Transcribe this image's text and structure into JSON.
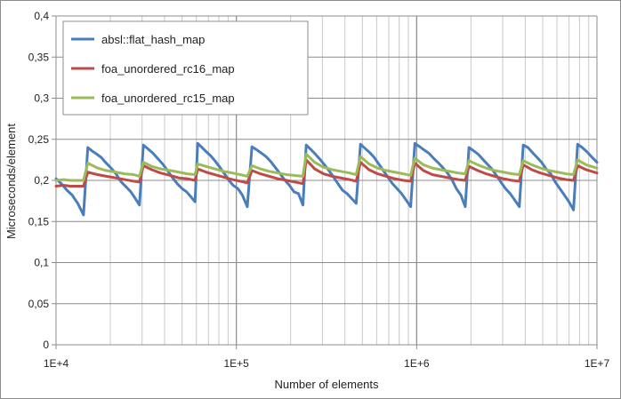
{
  "chart_data": {
    "type": "line",
    "title": "",
    "xlabel": "Number of elements",
    "ylabel": "Microseconds/element",
    "x_scale": "log",
    "xlim": [
      10000,
      10000000
    ],
    "ylim": [
      0,
      0.4
    ],
    "x_ticks": [
      {
        "value": 10000,
        "label": "1E+4"
      },
      {
        "value": 100000,
        "label": "1E+5"
      },
      {
        "value": 1000000,
        "label": "1E+6"
      },
      {
        "value": 10000000,
        "label": "1E+7"
      }
    ],
    "y_ticks": [
      {
        "value": 0,
        "label": "0"
      },
      {
        "value": 0.05,
        "label": "0,05"
      },
      {
        "value": 0.1,
        "label": "0,1"
      },
      {
        "value": 0.15,
        "label": "0,15"
      },
      {
        "value": 0.2,
        "label": "0,2"
      },
      {
        "value": 0.25,
        "label": "0,25"
      },
      {
        "value": 0.3,
        "label": "0,3"
      },
      {
        "value": 0.35,
        "label": "0,35"
      },
      {
        "value": 0.4,
        "label": "0,4"
      }
    ],
    "grid": true,
    "legend_position": "top-left",
    "series": [
      {
        "name": "absl::flat_hash_map",
        "color": "#4a7ebb",
        "points": [
          [
            10000,
            0.202
          ],
          [
            10700,
            0.196
          ],
          [
            11500,
            0.188
          ],
          [
            12300,
            0.182
          ],
          [
            13200,
            0.172
          ],
          [
            14200,
            0.158
          ],
          [
            15000,
            0.24
          ],
          [
            15800,
            0.236
          ],
          [
            16800,
            0.232
          ],
          [
            17800,
            0.228
          ],
          [
            18800,
            0.222
          ],
          [
            20000,
            0.216
          ],
          [
            21500,
            0.208
          ],
          [
            23000,
            0.198
          ],
          [
            24500,
            0.192
          ],
          [
            26000,
            0.186
          ],
          [
            27500,
            0.178
          ],
          [
            29000,
            0.17
          ],
          [
            30500,
            0.243
          ],
          [
            32500,
            0.238
          ],
          [
            34500,
            0.233
          ],
          [
            36500,
            0.227
          ],
          [
            39000,
            0.22
          ],
          [
            41500,
            0.212
          ],
          [
            44000,
            0.204
          ],
          [
            47000,
            0.196
          ],
          [
            50000,
            0.19
          ],
          [
            53000,
            0.186
          ],
          [
            56000,
            0.18
          ],
          [
            59000,
            0.174
          ],
          [
            61000,
            0.245
          ],
          [
            64500,
            0.24
          ],
          [
            68000,
            0.235
          ],
          [
            72000,
            0.23
          ],
          [
            76000,
            0.224
          ],
          [
            81000,
            0.216
          ],
          [
            86000,
            0.208
          ],
          [
            91000,
            0.2
          ],
          [
            96000,
            0.194
          ],
          [
            102000,
            0.19
          ],
          [
            108000,
            0.182
          ],
          [
            115000,
            0.168
          ],
          [
            122000,
            0.241
          ],
          [
            130000,
            0.237
          ],
          [
            138000,
            0.233
          ],
          [
            146000,
            0.229
          ],
          [
            155000,
            0.223
          ],
          [
            164000,
            0.216
          ],
          [
            175000,
            0.208
          ],
          [
            186000,
            0.2
          ],
          [
            197000,
            0.194
          ],
          [
            209000,
            0.186
          ],
          [
            221000,
            0.184
          ],
          [
            234000,
            0.17
          ],
          [
            244000,
            0.243
          ],
          [
            258000,
            0.238
          ],
          [
            274000,
            0.232
          ],
          [
            290000,
            0.226
          ],
          [
            308000,
            0.219
          ],
          [
            326000,
            0.212
          ],
          [
            346000,
            0.204
          ],
          [
            366000,
            0.196
          ],
          [
            388000,
            0.188
          ],
          [
            411000,
            0.184
          ],
          [
            436000,
            0.178
          ],
          [
            462000,
            0.172
          ],
          [
            488000,
            0.244
          ],
          [
            517000,
            0.239
          ],
          [
            548000,
            0.234
          ],
          [
            581000,
            0.228
          ],
          [
            616000,
            0.22
          ],
          [
            653000,
            0.212
          ],
          [
            692000,
            0.204
          ],
          [
            734000,
            0.196
          ],
          [
            778000,
            0.19
          ],
          [
            824000,
            0.184
          ],
          [
            874000,
            0.176
          ],
          [
            926000,
            0.168
          ],
          [
            977000,
            0.245
          ],
          [
            1040000,
            0.241
          ],
          [
            1100000,
            0.237
          ],
          [
            1170000,
            0.233
          ],
          [
            1240000,
            0.227
          ],
          [
            1310000,
            0.222
          ],
          [
            1390000,
            0.216
          ],
          [
            1470000,
            0.21
          ],
          [
            1560000,
            0.202
          ],
          [
            1660000,
            0.19
          ],
          [
            1760000,
            0.182
          ],
          [
            1860000,
            0.168
          ],
          [
            1950000,
            0.24
          ],
          [
            2070000,
            0.236
          ],
          [
            2190000,
            0.232
          ],
          [
            2320000,
            0.226
          ],
          [
            2460000,
            0.22
          ],
          [
            2610000,
            0.214
          ],
          [
            2770000,
            0.206
          ],
          [
            2930000,
            0.198
          ],
          [
            3110000,
            0.19
          ],
          [
            3300000,
            0.184
          ],
          [
            3500000,
            0.176
          ],
          [
            3710000,
            0.168
          ],
          [
            3900000,
            0.243
          ],
          [
            4140000,
            0.24
          ],
          [
            4380000,
            0.234
          ],
          [
            4650000,
            0.228
          ],
          [
            4930000,
            0.222
          ],
          [
            5220000,
            0.214
          ],
          [
            5540000,
            0.208
          ],
          [
            5870000,
            0.198
          ],
          [
            6220000,
            0.19
          ],
          [
            6600000,
            0.182
          ],
          [
            6990000,
            0.174
          ],
          [
            7410000,
            0.164
          ],
          [
            7810000,
            0.244
          ],
          [
            8280000,
            0.24
          ],
          [
            8780000,
            0.235
          ],
          [
            9310000,
            0.229
          ],
          [
            10000000,
            0.222
          ]
        ]
      },
      {
        "name": "foa_unordered_rc16_map",
        "color": "#be4b48",
        "points": [
          [
            10000,
            0.193
          ],
          [
            11000,
            0.194
          ],
          [
            12000,
            0.193
          ],
          [
            13000,
            0.193
          ],
          [
            14200,
            0.193
          ],
          [
            15000,
            0.21
          ],
          [
            17000,
            0.207
          ],
          [
            19000,
            0.205
          ],
          [
            21500,
            0.203
          ],
          [
            24000,
            0.201
          ],
          [
            27000,
            0.199
          ],
          [
            29000,
            0.198
          ],
          [
            30500,
            0.218
          ],
          [
            34000,
            0.213
          ],
          [
            38000,
            0.209
          ],
          [
            43000,
            0.206
          ],
          [
            48000,
            0.203
          ],
          [
            53500,
            0.202
          ],
          [
            59000,
            0.2
          ],
          [
            61000,
            0.214
          ],
          [
            68000,
            0.21
          ],
          [
            76000,
            0.207
          ],
          [
            85000,
            0.204
          ],
          [
            95000,
            0.201
          ],
          [
            105000,
            0.199
          ],
          [
            115000,
            0.197
          ],
          [
            122000,
            0.212
          ],
          [
            136000,
            0.208
          ],
          [
            152000,
            0.205
          ],
          [
            170000,
            0.202
          ],
          [
            190000,
            0.2
          ],
          [
            212000,
            0.198
          ],
          [
            234000,
            0.196
          ],
          [
            244000,
            0.225
          ],
          [
            272000,
            0.214
          ],
          [
            304000,
            0.208
          ],
          [
            340000,
            0.205
          ],
          [
            380000,
            0.203
          ],
          [
            424000,
            0.201
          ],
          [
            462000,
            0.199
          ],
          [
            488000,
            0.222
          ],
          [
            544000,
            0.213
          ],
          [
            608000,
            0.208
          ],
          [
            678000,
            0.205
          ],
          [
            757000,
            0.202
          ],
          [
            845000,
            0.2
          ],
          [
            926000,
            0.199
          ],
          [
            977000,
            0.221
          ],
          [
            1090000,
            0.212
          ],
          [
            1220000,
            0.207
          ],
          [
            1360000,
            0.205
          ],
          [
            1520000,
            0.203
          ],
          [
            1700000,
            0.201
          ],
          [
            1860000,
            0.2
          ],
          [
            1950000,
            0.217
          ],
          [
            2180000,
            0.212
          ],
          [
            2430000,
            0.208
          ],
          [
            2710000,
            0.205
          ],
          [
            3030000,
            0.202
          ],
          [
            3380000,
            0.2
          ],
          [
            3710000,
            0.199
          ],
          [
            3900000,
            0.219
          ],
          [
            4350000,
            0.213
          ],
          [
            4860000,
            0.209
          ],
          [
            5420000,
            0.206
          ],
          [
            6050000,
            0.203
          ],
          [
            6750000,
            0.201
          ],
          [
            7410000,
            0.2
          ],
          [
            7810000,
            0.218
          ],
          [
            8700000,
            0.213
          ],
          [
            10000000,
            0.209
          ]
        ]
      },
      {
        "name": "foa_unordered_rc15_map",
        "color": "#9bbb59",
        "points": [
          [
            10000,
            0.2
          ],
          [
            11000,
            0.201
          ],
          [
            12000,
            0.2
          ],
          [
            13000,
            0.2
          ],
          [
            14200,
            0.2
          ],
          [
            15000,
            0.221
          ],
          [
            17000,
            0.215
          ],
          [
            19000,
            0.212
          ],
          [
            21500,
            0.21
          ],
          [
            24000,
            0.208
          ],
          [
            27000,
            0.207
          ],
          [
            29000,
            0.205
          ],
          [
            30500,
            0.222
          ],
          [
            34000,
            0.217
          ],
          [
            38000,
            0.214
          ],
          [
            43000,
            0.212
          ],
          [
            48000,
            0.21
          ],
          [
            53500,
            0.208
          ],
          [
            59000,
            0.207
          ],
          [
            61000,
            0.22
          ],
          [
            68000,
            0.217
          ],
          [
            76000,
            0.214
          ],
          [
            85000,
            0.211
          ],
          [
            95000,
            0.209
          ],
          [
            105000,
            0.207
          ],
          [
            115000,
            0.205
          ],
          [
            122000,
            0.218
          ],
          [
            136000,
            0.214
          ],
          [
            152000,
            0.211
          ],
          [
            170000,
            0.209
          ],
          [
            190000,
            0.207
          ],
          [
            212000,
            0.206
          ],
          [
            234000,
            0.205
          ],
          [
            244000,
            0.232
          ],
          [
            272000,
            0.222
          ],
          [
            304000,
            0.216
          ],
          [
            340000,
            0.213
          ],
          [
            380000,
            0.211
          ],
          [
            424000,
            0.209
          ],
          [
            462000,
            0.207
          ],
          [
            488000,
            0.229
          ],
          [
            544000,
            0.22
          ],
          [
            608000,
            0.215
          ],
          [
            678000,
            0.212
          ],
          [
            757000,
            0.21
          ],
          [
            845000,
            0.208
          ],
          [
            926000,
            0.206
          ],
          [
            977000,
            0.227
          ],
          [
            1090000,
            0.219
          ],
          [
            1220000,
            0.215
          ],
          [
            1360000,
            0.213
          ],
          [
            1520000,
            0.211
          ],
          [
            1700000,
            0.209
          ],
          [
            1860000,
            0.208
          ],
          [
            1950000,
            0.224
          ],
          [
            2180000,
            0.219
          ],
          [
            2430000,
            0.215
          ],
          [
            2710000,
            0.212
          ],
          [
            3030000,
            0.21
          ],
          [
            3380000,
            0.208
          ],
          [
            3710000,
            0.207
          ],
          [
            3900000,
            0.224
          ],
          [
            4350000,
            0.219
          ],
          [
            4860000,
            0.215
          ],
          [
            5420000,
            0.212
          ],
          [
            6050000,
            0.21
          ],
          [
            6750000,
            0.208
          ],
          [
            7410000,
            0.207
          ],
          [
            7810000,
            0.225
          ],
          [
            8700000,
            0.219
          ],
          [
            10000000,
            0.215
          ]
        ]
      }
    ]
  }
}
